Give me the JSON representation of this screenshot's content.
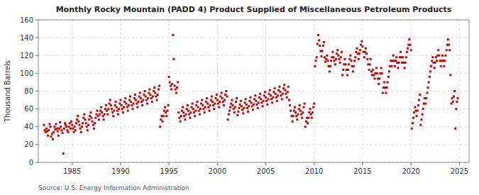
{
  "chart_data": {
    "type": "scatter",
    "title": "Monthly Rocky Mountain (PADD 4) Product Supplied of Miscellaneous Petroleum Products",
    "ylabel": "Thousand Barrels",
    "source": "Source: U.S. Energy Information Administration",
    "color": "#CC0000",
    "marker": "square",
    "grid": true,
    "xlim": [
      1981.5,
      2026.0
    ],
    "xticks": [
      1985,
      1990,
      1995,
      2000,
      2005,
      2010,
      2015,
      2020,
      2025
    ],
    "ylim": [
      0,
      160
    ],
    "yticks": [
      0,
      20,
      40,
      60,
      80,
      100,
      120,
      140,
      160
    ],
    "x": [
      1982.08,
      1982.17,
      1982.25,
      1982.33,
      1982.42,
      1982.5,
      1982.58,
      1982.67,
      1982.75,
      1982.83,
      1982.92,
      1983.0,
      1983.08,
      1983.17,
      1983.25,
      1983.33,
      1983.42,
      1983.5,
      1983.58,
      1983.67,
      1983.75,
      1983.83,
      1983.92,
      1984.0,
      1984.08,
      1984.17,
      1984.25,
      1984.33,
      1984.42,
      1984.5,
      1984.58,
      1984.67,
      1984.75,
      1984.83,
      1984.92,
      1985.0,
      1985.08,
      1985.17,
      1985.25,
      1985.33,
      1985.42,
      1985.5,
      1985.58,
      1985.67,
      1985.75,
      1985.83,
      1985.92,
      1986.0,
      1986.08,
      1986.17,
      1986.25,
      1986.33,
      1986.42,
      1986.5,
      1986.58,
      1986.67,
      1986.75,
      1986.83,
      1986.92,
      1987.0,
      1987.08,
      1987.17,
      1987.25,
      1987.33,
      1987.42,
      1987.5,
      1987.58,
      1987.67,
      1987.75,
      1987.83,
      1987.92,
      1988.0,
      1988.08,
      1988.17,
      1988.25,
      1988.33,
      1988.42,
      1988.5,
      1988.58,
      1988.67,
      1988.75,
      1988.83,
      1988.92,
      1989.0,
      1989.08,
      1989.17,
      1989.25,
      1989.33,
      1989.42,
      1989.5,
      1989.58,
      1989.67,
      1989.75,
      1989.83,
      1989.92,
      1990.0,
      1990.08,
      1990.17,
      1990.25,
      1990.33,
      1990.42,
      1990.5,
      1990.58,
      1990.67,
      1990.75,
      1990.83,
      1990.92,
      1991.0,
      1991.08,
      1991.17,
      1991.25,
      1991.33,
      1991.42,
      1991.5,
      1991.58,
      1991.67,
      1991.75,
      1991.83,
      1991.92,
      1992.0,
      1992.08,
      1992.17,
      1992.25,
      1992.33,
      1992.42,
      1992.5,
      1992.58,
      1992.67,
      1992.75,
      1992.83,
      1992.92,
      1993.0,
      1993.08,
      1993.17,
      1993.25,
      1993.33,
      1993.42,
      1993.5,
      1993.58,
      1993.67,
      1993.75,
      1993.83,
      1993.92,
      1994.0,
      1994.08,
      1994.17,
      1994.25,
      1994.33,
      1994.42,
      1994.5,
      1994.58,
      1994.67,
      1994.75,
      1994.83,
      1994.92,
      1995.0,
      1995.08,
      1995.17,
      1995.25,
      1995.33,
      1995.42,
      1995.5,
      1995.58,
      1995.67,
      1995.75,
      1995.83,
      1995.92,
      1996.0,
      1996.08,
      1996.17,
      1996.25,
      1996.33,
      1996.42,
      1996.5,
      1996.58,
      1996.67,
      1996.75,
      1996.83,
      1996.92,
      1997.0,
      1997.08,
      1997.17,
      1997.25,
      1997.33,
      1997.42,
      1997.5,
      1997.58,
      1997.67,
      1997.75,
      1997.83,
      1997.92,
      1998.0,
      1998.08,
      1998.17,
      1998.25,
      1998.33,
      1998.42,
      1998.5,
      1998.58,
      1998.67,
      1998.75,
      1998.83,
      1998.92,
      1999.0,
      1999.08,
      1999.17,
      1999.25,
      1999.33,
      1999.42,
      1999.5,
      1999.58,
      1999.67,
      1999.75,
      1999.83,
      1999.92,
      2000.0,
      2000.08,
      2000.17,
      2000.25,
      2000.33,
      2000.42,
      2000.5,
      2000.58,
      2000.67,
      2000.75,
      2000.83,
      2000.92,
      2001.0,
      2001.08,
      2001.17,
      2001.25,
      2001.33,
      2001.42,
      2001.5,
      2001.58,
      2001.67,
      2001.75,
      2001.83,
      2001.92,
      2002.0,
      2002.08,
      2002.17,
      2002.25,
      2002.33,
      2002.42,
      2002.5,
      2002.58,
      2002.67,
      2002.75,
      2002.83,
      2002.92,
      2003.0,
      2003.08,
      2003.17,
      2003.25,
      2003.33,
      2003.42,
      2003.5,
      2003.58,
      2003.67,
      2003.75,
      2003.83,
      2003.92,
      2004.0,
      2004.08,
      2004.17,
      2004.25,
      2004.33,
      2004.42,
      2004.5,
      2004.58,
      2004.67,
      2004.75,
      2004.83,
      2004.92,
      2005.0,
      2005.08,
      2005.17,
      2005.25,
      2005.33,
      2005.42,
      2005.5,
      2005.58,
      2005.67,
      2005.75,
      2005.83,
      2005.92,
      2006.0,
      2006.08,
      2006.17,
      2006.25,
      2006.33,
      2006.42,
      2006.5,
      2006.58,
      2006.67,
      2006.75,
      2006.83,
      2006.92,
      2007.0,
      2007.08,
      2007.17,
      2007.25,
      2007.33,
      2007.42,
      2007.5,
      2007.58,
      2007.67,
      2007.75,
      2007.83,
      2007.92,
      2008.0,
      2008.08,
      2008.17,
      2008.25,
      2008.33,
      2008.42,
      2008.5,
      2008.58,
      2008.67,
      2008.75,
      2008.83,
      2008.92,
      2009.0,
      2009.08,
      2009.17,
      2009.25,
      2009.33,
      2009.42,
      2009.5,
      2009.58,
      2009.67,
      2009.75,
      2009.83,
      2009.92,
      2010.0,
      2010.08,
      2010.17,
      2010.25,
      2010.33,
      2010.42,
      2010.5,
      2010.58,
      2010.67,
      2010.75,
      2010.83,
      2010.92,
      2011.0,
      2011.08,
      2011.17,
      2011.25,
      2011.33,
      2011.42,
      2011.5,
      2011.58,
      2011.67,
      2011.75,
      2011.83,
      2011.92,
      2012.0,
      2012.08,
      2012.17,
      2012.25,
      2012.33,
      2012.42,
      2012.5,
      2012.58,
      2012.67,
      2012.75,
      2012.83,
      2012.92,
      2013.0,
      2013.08,
      2013.17,
      2013.25,
      2013.33,
      2013.42,
      2013.5,
      2013.58,
      2013.67,
      2013.75,
      2013.83,
      2013.92,
      2014.0,
      2014.08,
      2014.17,
      2014.25,
      2014.33,
      2014.42,
      2014.5,
      2014.58,
      2014.67,
      2014.75,
      2014.83,
      2014.92,
      2015.0,
      2015.08,
      2015.17,
      2015.25,
      2015.33,
      2015.42,
      2015.5,
      2015.58,
      2015.67,
      2015.75,
      2015.83,
      2015.92,
      2016.0,
      2016.08,
      2016.17,
      2016.25,
      2016.33,
      2016.42,
      2016.5,
      2016.58,
      2016.67,
      2016.75,
      2016.83,
      2016.92,
      2017.0,
      2017.08,
      2017.17,
      2017.25,
      2017.33,
      2017.42,
      2017.5,
      2017.58,
      2017.67,
      2017.75,
      2017.83,
      2017.92,
      2018.0,
      2018.08,
      2018.17,
      2018.25,
      2018.33,
      2018.42,
      2018.5,
      2018.58,
      2018.67,
      2018.75,
      2018.83,
      2018.92,
      2019.0,
      2019.08,
      2019.17,
      2019.25,
      2019.33,
      2019.42,
      2019.5,
      2019.58,
      2019.67,
      2019.75,
      2019.83,
      2019.92,
      2020.0,
      2020.08,
      2020.17,
      2020.25,
      2020.33,
      2020.42,
      2020.5,
      2020.58,
      2020.67,
      2020.75,
      2020.83,
      2020.92,
      2021.0,
      2021.08,
      2021.17,
      2021.25,
      2021.33,
      2021.42,
      2021.5,
      2021.58,
      2021.67,
      2021.75,
      2021.83,
      2021.92,
      2022.0,
      2022.08,
      2022.17,
      2022.25,
      2022.33,
      2022.42,
      2022.5,
      2022.58,
      2022.67,
      2022.75,
      2022.83,
      2022.92,
      2023.0,
      2023.08,
      2023.17,
      2023.25,
      2023.33,
      2023.42,
      2023.5,
      2023.58,
      2023.67,
      2023.75,
      2023.83,
      2023.92,
      2024.0,
      2024.08,
      2024.17,
      2024.25,
      2024.33,
      2024.42,
      2024.5,
      2024.58,
      2024.67,
      2024.75,
      2024.83
    ],
    "values": [
      42,
      36,
      34,
      38,
      35,
      30,
      36,
      43,
      40,
      29,
      32,
      26,
      34,
      40,
      37,
      43,
      38,
      35,
      30,
      38,
      45,
      40,
      36,
      33,
      10,
      38,
      44,
      42,
      40,
      36,
      34,
      40,
      44,
      38,
      46,
      42,
      38,
      34,
      40,
      36,
      44,
      48,
      52,
      46,
      42,
      38,
      34,
      40,
      44,
      50,
      54,
      48,
      44,
      40,
      36,
      42,
      48,
      52,
      56,
      50,
      46,
      42,
      38,
      44,
      50,
      54,
      58,
      52,
      48,
      54,
      58,
      62,
      56,
      52,
      48,
      54,
      60,
      64,
      58,
      54,
      60,
      66,
      70,
      64,
      60,
      56,
      52,
      58,
      64,
      68,
      62,
      58,
      54,
      60,
      66,
      70,
      64,
      60,
      56,
      62,
      68,
      72,
      66,
      62,
      58,
      64,
      70,
      74,
      68,
      64,
      60,
      66,
      72,
      76,
      70,
      66,
      62,
      68,
      74,
      78,
      72,
      68,
      64,
      70,
      76,
      80,
      74,
      70,
      66,
      72,
      78,
      82,
      76,
      72,
      68,
      74,
      80,
      84,
      78,
      74,
      70,
      76,
      82,
      86,
      40,
      48,
      52,
      46,
      52,
      58,
      62,
      56,
      52,
      58,
      64,
      96,
      90,
      86,
      82,
      88,
      143,
      116,
      86,
      82,
      78,
      84,
      90,
      56,
      50,
      46,
      52,
      58,
      62,
      56,
      52,
      48,
      54,
      60,
      64,
      58,
      54,
      50,
      56,
      62,
      66,
      60,
      56,
      52,
      58,
      64,
      68,
      62,
      58,
      54,
      60,
      66,
      70,
      64,
      60,
      56,
      62,
      68,
      72,
      66,
      62,
      58,
      64,
      70,
      74,
      68,
      64,
      60,
      66,
      72,
      76,
      70,
      66,
      62,
      68,
      74,
      78,
      72,
      68,
      64,
      70,
      76,
      80,
      74,
      48,
      54,
      58,
      62,
      66,
      70,
      64,
      60,
      56,
      62,
      68,
      72,
      53,
      57,
      61,
      65,
      69,
      63,
      59,
      55,
      61,
      67,
      71,
      65,
      61,
      57,
      63,
      69,
      73,
      67,
      63,
      59,
      65,
      71,
      75,
      69,
      65,
      61,
      67,
      73,
      77,
      71,
      67,
      63,
      69,
      75,
      79,
      73,
      69,
      65,
      71,
      77,
      81,
      75,
      71,
      67,
      73,
      79,
      83,
      77,
      73,
      69,
      75,
      81,
      85,
      79,
      75,
      71,
      77,
      83,
      87,
      81,
      77,
      73,
      79,
      85,
      70,
      64,
      58,
      52,
      46,
      52,
      58,
      62,
      56,
      52,
      48,
      54,
      60,
      64,
      58,
      54,
      50,
      56,
      62,
      66,
      40,
      46,
      50,
      44,
      50,
      56,
      60,
      54,
      50,
      56,
      62,
      66,
      108,
      114,
      118,
      133,
      143,
      137,
      131,
      125,
      119,
      125,
      131,
      135,
      118,
      113,
      116,
      120,
      114,
      108,
      102,
      108,
      114,
      118,
      124,
      118,
      114,
      110,
      116,
      122,
      126,
      120,
      116,
      112,
      118,
      124,
      98,
      104,
      110,
      116,
      110,
      104,
      98,
      104,
      110,
      116,
      120,
      114,
      108,
      102,
      108,
      114,
      118,
      124,
      128,
      122,
      116,
      122,
      126,
      132,
      136,
      130,
      124,
      118,
      124,
      128,
      122,
      116,
      110,
      104,
      110,
      116,
      102,
      98,
      104,
      98,
      94,
      100,
      106,
      100,
      94,
      88,
      94,
      100,
      106,
      100,
      78,
      84,
      90,
      84,
      78,
      84,
      90,
      96,
      102,
      108,
      114,
      108,
      114,
      120,
      114,
      108,
      114,
      118,
      112,
      106,
      112,
      118,
      124,
      118,
      112,
      118,
      112,
      106,
      112,
      118,
      124,
      128,
      132,
      138,
      132,
      126,
      38,
      44,
      50,
      56,
      62,
      58,
      52,
      58,
      64,
      70,
      76,
      42,
      48,
      54,
      60,
      66,
      72,
      66,
      72,
      78,
      84,
      90,
      96,
      102,
      108,
      114,
      118,
      112,
      106,
      112,
      118,
      114,
      120,
      126,
      120,
      114,
      108,
      114,
      120,
      114,
      108,
      114,
      120,
      126,
      132,
      138,
      132,
      126,
      98,
      66,
      72,
      68,
      74,
      80,
      38,
      60,
      68,
      72
    ]
  }
}
